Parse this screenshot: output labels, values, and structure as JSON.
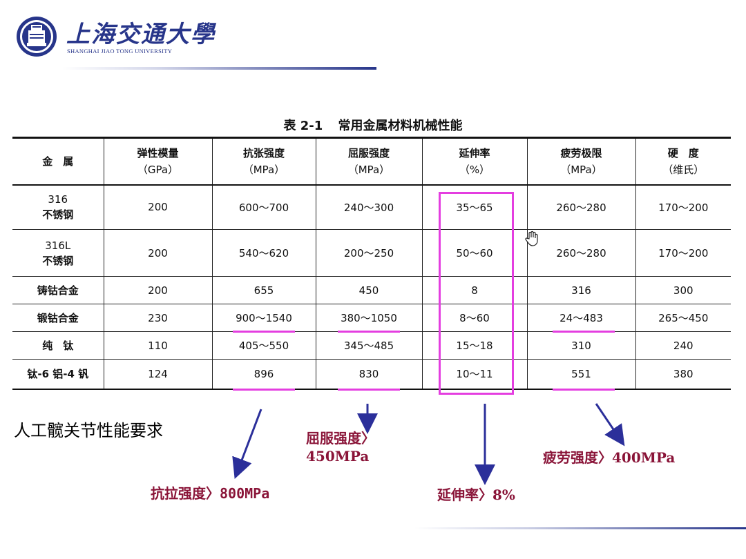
{
  "header": {
    "univ_cn": "上海交通大學",
    "univ_en": "SHANGHAI JIAO TONG UNIVERSITY"
  },
  "table": {
    "caption_no": "表 2-1",
    "caption_title": "常用金属材料机械性能",
    "headers": [
      {
        "name": "金　属",
        "unit": ""
      },
      {
        "name": "弹性模量",
        "unit": "（GPa）"
      },
      {
        "name": "抗张强度",
        "unit": "（MPa）"
      },
      {
        "name": "屈服强度",
        "unit": "（MPa）"
      },
      {
        "name": "延伸率",
        "unit": "（%）"
      },
      {
        "name": "疲劳极限",
        "unit": "（MPa）"
      },
      {
        "name": "硬　度",
        "unit": "（维氏）"
      }
    ],
    "rows": [
      {
        "material": [
          "316",
          "不锈钢"
        ],
        "values": [
          "200",
          "600～700",
          "240～300",
          "35～65",
          "260～280",
          "170～200"
        ]
      },
      {
        "material": [
          "316L",
          "不锈钢"
        ],
        "values": [
          "200",
          "540～620",
          "200～250",
          "50～60",
          "260～280",
          "170～200"
        ]
      },
      {
        "material": [
          "铸钴合金"
        ],
        "values": [
          "200",
          "655",
          "450",
          "8",
          "316",
          "300"
        ]
      },
      {
        "material": [
          "锻钴合金"
        ],
        "values": [
          "230",
          "900～1540",
          "380～1050",
          "8～60",
          "24～483",
          "265～450"
        ]
      },
      {
        "material": [
          "纯　钛"
        ],
        "values": [
          "110",
          "405～550",
          "345～485",
          "15～18",
          "310",
          "240"
        ]
      },
      {
        "material": [
          "钛-6 铝-4 钒"
        ],
        "values": [
          "124",
          "896",
          "830",
          "10～11",
          "551",
          "380"
        ]
      }
    ]
  },
  "requirements": {
    "title": "人工髋关节性能要求",
    "tensile": "抗拉强度〉800MPa",
    "yield_l1": "屈服强度〉",
    "yield_l2": "450MPa",
    "elongation": "延伸率〉8%",
    "fatigue": "疲劳强度〉400MPa"
  },
  "colors": {
    "brand": "#27358a",
    "highlight": "#e43ee0",
    "arrow": "#2b2f9a",
    "annotation_text": "#8a1438"
  }
}
